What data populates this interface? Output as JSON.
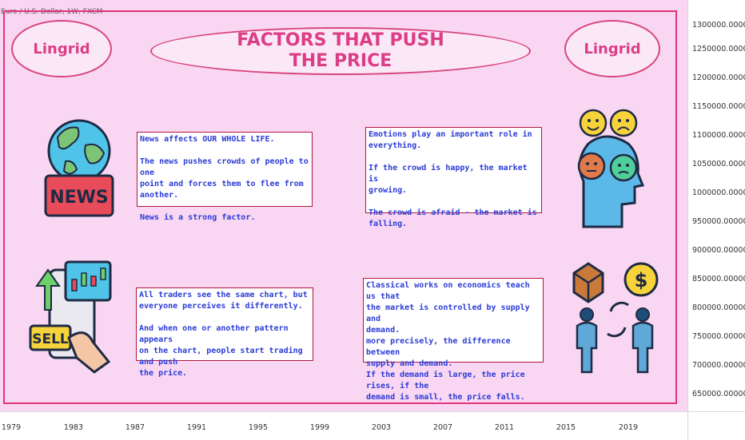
{
  "symbol": "Euro / U.S. Dollar, 1W, FXCM",
  "left_badge": "Lingrid",
  "right_badge": "Lingrid",
  "title_line1": "FACTORS THAT PUSH",
  "title_line2": "THE PRICE",
  "news_icon_text": "NEWS",
  "sell_icon_text": "SELL",
  "boxes": {
    "news": [
      "News affects OUR WHOLE LIFE.",
      "The news pushes crowds of people to one\npoint and forces them to flee from another.",
      "News is a strong factor."
    ],
    "emotions": [
      "Emotions play an important role in\neverything.",
      "If the crowd is happy, the market is\ngrowing.",
      "The crowd is afraid - the market is falling."
    ],
    "chart": [
      "All traders see the same chart, but\neveryone perceives it differently.",
      "And when one or another pattern appears\non the chart, people start trading and push\nthe price."
    ],
    "economics": [
      "Classical works on economics teach us that\nthe market is controlled by supply and\ndemand.",
      "more precisely, the difference between\nsupply and demand.",
      "If the demand is large, the price rises, if the\ndemand is small, the price falls."
    ]
  },
  "price_axis": [
    "1300000.00000",
    "1250000.00000",
    "1200000.00000",
    "1150000.00000",
    "1100000.00000",
    "1050000.00000",
    "1000000.00000",
    "950000.00000",
    "900000.00000",
    "850000.00000",
    "800000.00000",
    "750000.00000",
    "700000.00000",
    "650000.00000"
  ],
  "time_axis": [
    "1979",
    "1983",
    "1987",
    "1991",
    "1995",
    "1999",
    "2003",
    "2007",
    "2011",
    "2015",
    "2019"
  ],
  "colors": {
    "background": "#f9d7f3",
    "frame": "#e0337b",
    "text_blue": "#2a3bd6",
    "title_pink": "#dc3d87"
  }
}
